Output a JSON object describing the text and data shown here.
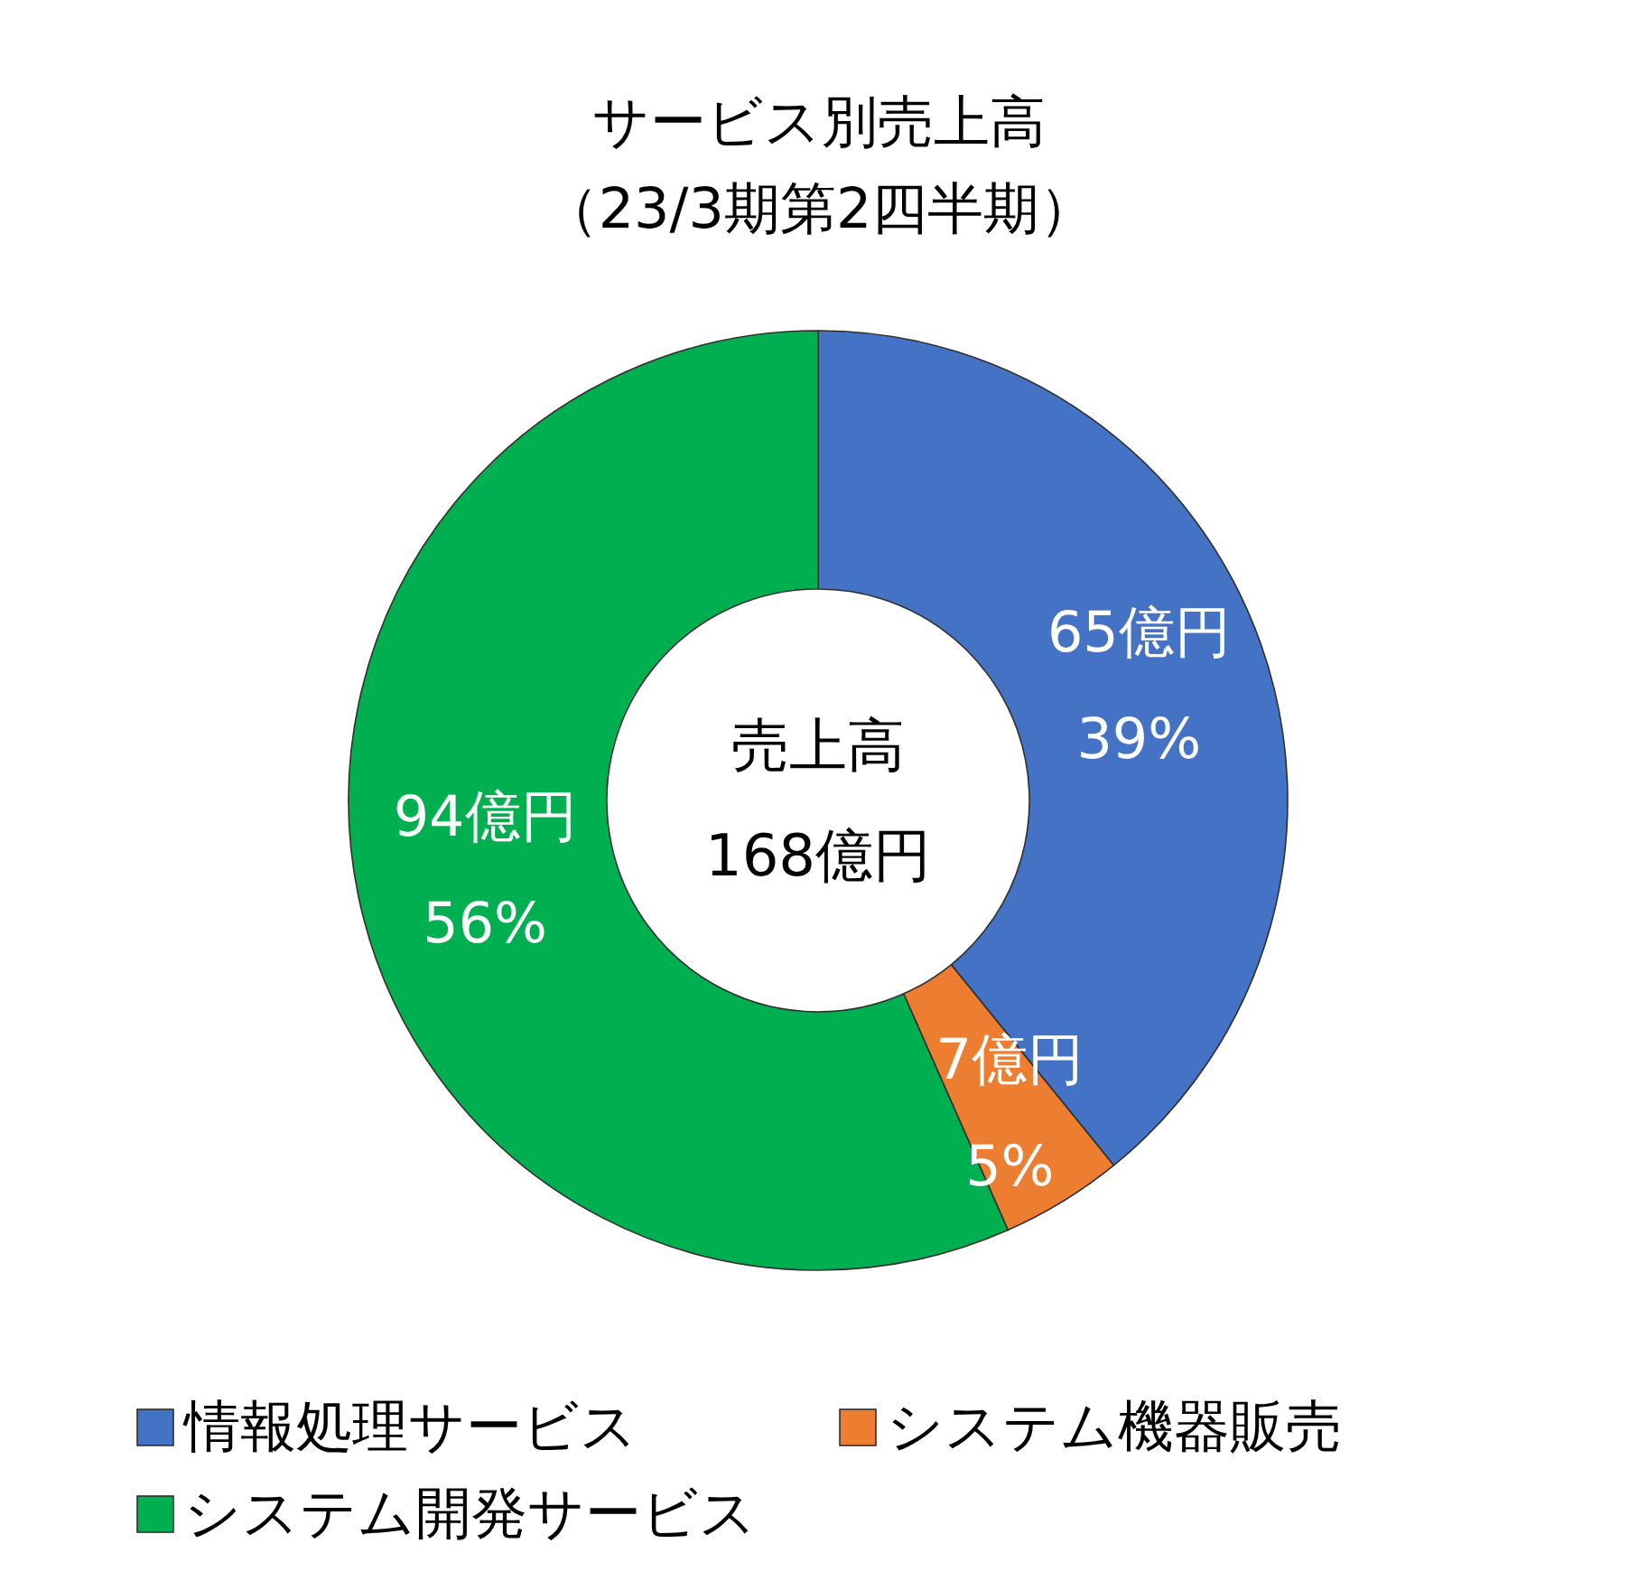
{
  "chart_data": {
    "type": "donut",
    "title": "サービス別売上高",
    "subtitle": "（23/3期第2四半期）",
    "categories": [
      "情報処理サービス",
      "システム機器販売",
      "システム開発サービス"
    ],
    "values": [
      65,
      7,
      94
    ],
    "colors": [
      "#4472c4",
      "#ed7d31",
      "#00b050"
    ],
    "value_labels": [
      "65億円\n39%",
      "7億円\n5%",
      "94億円\n56%"
    ],
    "annotations": [
      "売上高\n168億円"
    ],
    "legend": "bottom"
  }
}
